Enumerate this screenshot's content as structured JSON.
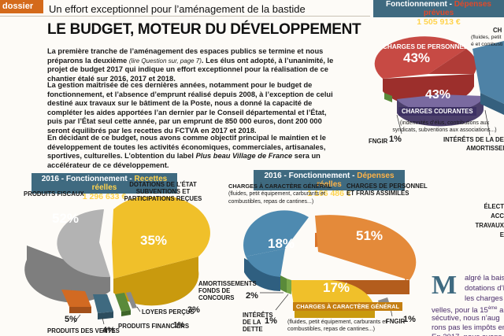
{
  "header": {
    "tag": "dossier",
    "section_title": "Un effort exceptionnel pour l’aménagement de la bastide"
  },
  "headline": "LE BUDGET, MOTEUR DU DÉVELOPPEMENT",
  "article": {
    "p1_before": "La première tranche de l’aménagement des espaces publics se termine et nous préparons la deuxième",
    "p1_ref": "(lire Question sur, page 7)",
    "p1_after": ". Les élus ont adopté, à l’unanimité, le projet de budget 2017 qui indique un effort exceptionnel pour la réalisation de ce chantier étalé sur 2016, 2017 et 2018.",
    "p2": "La gestion maîtrisée de ces dernières années, notamment pour le budget de fonctionnement, et l’absence d’emprunt réalisé depuis 2008, à l’exception de celui destiné aux travaux sur le bâtiment de la Poste, nous a donné la capacité de compléter les aides apportées l’an dernier par le Conseil départemental et l’État, puis par l’État seul cette année, par un emprunt de 850 000 euros, dont 200 000 seront équilibrés par les recettes du FCTVA en 2017 et 2018.",
    "p3_before": "En décidant de ce budget, nous avons comme objectif principal le maintien et le développement de toutes les activités économiques, commerciales, artisanales, sportives, culturelles. L’obtention du label ",
    "p3_label": "Plus beau Village de France",
    "p3_after": " sera un accélérateur de ce développement."
  },
  "chart_recettes": {
    "head_prefix": "2016 - Fonctionnement - ",
    "head_sub": "Recettes réelles",
    "amount": "1 296 633 €",
    "labels": {
      "fiscaux": "PRODUITS FISCAUX",
      "dotations": "DOTATIONS DE L’ÉTAT SUBVENTIONS ET PARTICIPATIONS REÇUES",
      "ventes": "PRODUITS DES VENTES",
      "loyers": "LOYERS PERÇUS",
      "financiers": "PRODUITS FINANCIERS"
    },
    "pcts": {
      "fiscaux": "52%",
      "dotations": "35%",
      "ventes": "5%",
      "loyers": "3%",
      "financiers": "1%",
      "other": "4%"
    }
  },
  "chart_depenses": {
    "head_prefix": "2016 - Fonctionnement - ",
    "head_sub": "Dépenses réelles",
    "amount": "1 106 486 €",
    "labels": {
      "cg_title": "CHARGES À CARACTÈRE GÉNÉRAL",
      "cg_detail": "(fluides, petit équipement, carburants et combustibles, repas de cantines...)",
      "personnel": "CHARGES DE PERSONNEL ET FRAIS ASSIMILÉS",
      "amort": "AMORTISSEMENTS FONDS DE CONCOURS",
      "interets": "INTÉRÊTS DE LA DETTE",
      "fngir": "FNGIR",
      "cg_band": "CHARGES À CARACTÈRE GÉNÉRAL",
      "cg_bottom": "(fluides, petit équipement, carburants et combustibles, repas de cantines...)"
    },
    "pcts": {
      "bleu": "18%",
      "personnel": "51%",
      "jaune": "17%",
      "amort": "2%",
      "interets": "1%",
      "fngir": "1%"
    }
  },
  "top_right": {
    "head_prefix": "Fonctionnement - ",
    "head_sub": "Dépenses prévues",
    "amount": "1 505 913 €",
    "personnel": "CHARGES DE PERSONNEL",
    "personnel_pct": "43%",
    "courantes": "CHARGES COURANTES",
    "courantes_pct": "43%",
    "courantes_detail": "(indemnités d’élus, contributions aux syndicats, subventions aux associations...)",
    "ch": "CH",
    "ch_detail": "(fluides, petit é et combusti",
    "interets": "INTÉRÊTS DE LA DETTE 1%",
    "amort": "AMORTISSEME",
    "fngir": "FNGIR",
    "fngir_pct": "1%"
  },
  "right_col": {
    "l1": "ÉLECT",
    "l2": "ACC",
    "l3": "TRAVAUX",
    "l4": "E"
  },
  "side_article": {
    "dropcap": "M",
    "line1": "algré la bais",
    "line2": "dotations d’É",
    "line3": "les charges",
    "line4": "velles, pour la 15",
    "line4_sup": "ème",
    "line4_end": " ann",
    "line5": "sécutive, nous n’aug",
    "line6": "rons pas les impôts en 2",
    "line7": "En 2017, nous avons"
  }
}
